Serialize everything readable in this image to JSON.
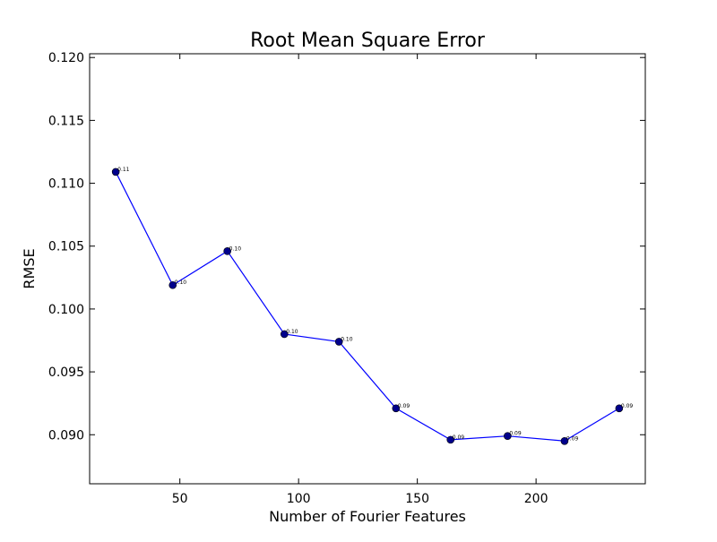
{
  "chart_data": {
    "type": "line",
    "title": "Root Mean Square Error",
    "xlabel": "Number of Fourier Features",
    "ylabel": "RMSE",
    "xlim": [
      12,
      246
    ],
    "ylim": [
      0.0861,
      0.1203
    ],
    "x_ticks": [
      50,
      100,
      150,
      200
    ],
    "x_tick_labels": [
      "50",
      "100",
      "150",
      "200"
    ],
    "y_ticks": [
      0.09,
      0.095,
      0.1,
      0.105,
      0.11,
      0.115,
      0.12
    ],
    "y_tick_labels": [
      "0.090",
      "0.095",
      "0.100",
      "0.105",
      "0.110",
      "0.115",
      "0.120"
    ],
    "grid": false,
    "series": [
      {
        "color": "#0000ff",
        "marker_color": "#00008b",
        "x": [
          23,
          47,
          70,
          94,
          117,
          141,
          164,
          188,
          212,
          235
        ],
        "y": [
          0.1109,
          0.1019,
          0.1046,
          0.098,
          0.0974,
          0.0921,
          0.0896,
          0.0899,
          0.0895,
          0.0921
        ],
        "point_labels": [
          "0.11",
          "0.10",
          "0.10",
          "0.10",
          "0.10",
          "0.09",
          "0.09",
          "0.09",
          "0.09",
          "0.09"
        ]
      }
    ]
  }
}
